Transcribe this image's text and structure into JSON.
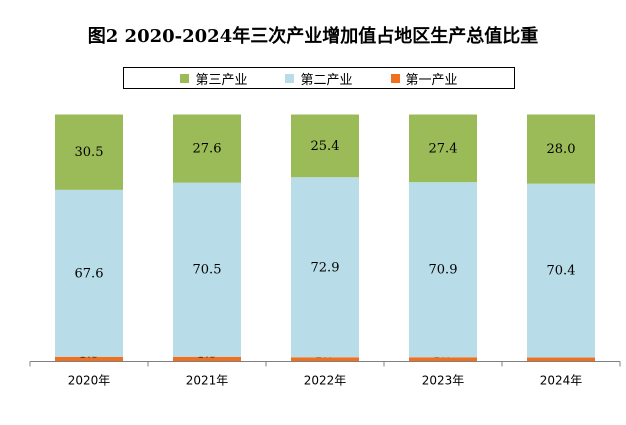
{
  "title": "图2  2020-2024年三次产业增加值占地区生产总值比重",
  "chart_data": {
    "type": "bar",
    "stacked": true,
    "percent": true,
    "title": "图2  2020-2024年三次产业增加值占地区生产总值比重",
    "categories": [
      "2020年",
      "2021年",
      "2022年",
      "2023年",
      "2024年"
    ],
    "series": [
      {
        "name": "第一产业",
        "color": "#F07020",
        "values": [
          1.9,
          1.9,
          1.7,
          1.7,
          1.6
        ]
      },
      {
        "name": "第二产业",
        "color": "#B8DDE8",
        "values": [
          67.6,
          70.5,
          72.9,
          70.9,
          70.4
        ]
      },
      {
        "name": "第三产业",
        "color": "#9BBB59",
        "values": [
          30.5,
          27.6,
          25.4,
          27.4,
          28.0
        ]
      }
    ],
    "legend": {
      "position": "top",
      "order": [
        "第三产业",
        "第二产业",
        "第一产业"
      ]
    },
    "ylim": [
      0,
      100
    ],
    "grid": false,
    "xlabel": "",
    "ylabel": ""
  }
}
